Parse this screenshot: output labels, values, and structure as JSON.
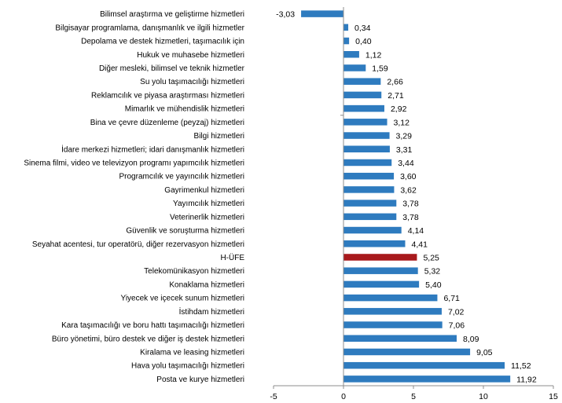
{
  "chart_data": {
    "type": "bar",
    "orientation": "horizontal",
    "title": "",
    "xlabel": "",
    "ylabel": "",
    "xlim": [
      -5,
      15
    ],
    "xticks": [
      -5,
      0,
      5,
      10,
      15
    ],
    "xtick_labels": [
      "-5",
      "0",
      "5",
      "10",
      "15"
    ],
    "grid": false,
    "legend": "none",
    "colors": {
      "default": "#2e7bbf",
      "highlight": "#a8191c",
      "axis": "#8c8c8c"
    },
    "highlight_category": "H-ÜFE",
    "categories": [
      "Bilimsel araştırma ve geliştirme hizmetleri",
      "Bilgisayar programlama, danışmanlık ve ilgili hizmetler",
      "Depolama ve destek hizmetleri, taşımacılık için",
      "Hukuk ve muhasebe hizmetleri",
      "Diğer mesleki, bilimsel ve teknik hizmetler",
      "Su yolu taşımacılığı hizmetleri",
      "Reklamcılık ve piyasa araştırması hizmetleri",
      "Mimarlık ve mühendislik hizmetleri",
      "Bina ve çevre düzenleme (peyzaj) hizmetleri",
      "Bilgi hizmetleri",
      "İdare merkezi hizmetleri; idari danışmanlık hizmetleri",
      "Sinema filmi, video ve televizyon programı yapımcılık hizmetleri",
      "Programcılık ve yayıncılık hizmetleri",
      "Gayrimenkul hizmetleri",
      "Yayımcılık hizmetleri",
      "Veterinerlik hizmetleri",
      "Güvenlik ve soruşturma hizmetleri",
      "Seyahat acentesi, tur operatörü, diğer rezervasyon hizmetleri",
      "H-ÜFE",
      "Telekomünikasyon hizmetleri",
      "Konaklama hizmetleri",
      "Yiyecek ve içecek sunum hizmetleri",
      "İstihdam hizmetleri",
      "Kara taşımacılığı ve boru hattı taşımacılığı hizmetleri",
      "Büro yönetimi, büro destek ve diğer iş destek hizmetleri",
      "Kiralama ve leasing hizmetleri",
      "Hava yolu taşımacılığı hizmetleri",
      "Posta ve kurye hizmetleri"
    ],
    "values": [
      -3.03,
      0.34,
      0.4,
      1.12,
      1.59,
      2.66,
      2.71,
      2.92,
      3.12,
      3.29,
      3.31,
      3.44,
      3.6,
      3.62,
      3.78,
      3.78,
      4.14,
      4.41,
      5.25,
      5.32,
      5.4,
      6.71,
      7.02,
      7.06,
      8.09,
      9.05,
      11.52,
      11.92
    ],
    "value_labels": [
      "-3,03",
      "0,34",
      "0,40",
      "1,12",
      "1,59",
      "2,66",
      "2,71",
      "2,92",
      "3,12",
      "3,29",
      "3,31",
      "3,44",
      "3,60",
      "3,62",
      "3,78",
      "3,78",
      "4,14",
      "4,41",
      "5,25",
      "5,32",
      "5,40",
      "6,71",
      "7,02",
      "7,06",
      "8,09",
      "9,05",
      "11,52",
      "11,92"
    ]
  }
}
